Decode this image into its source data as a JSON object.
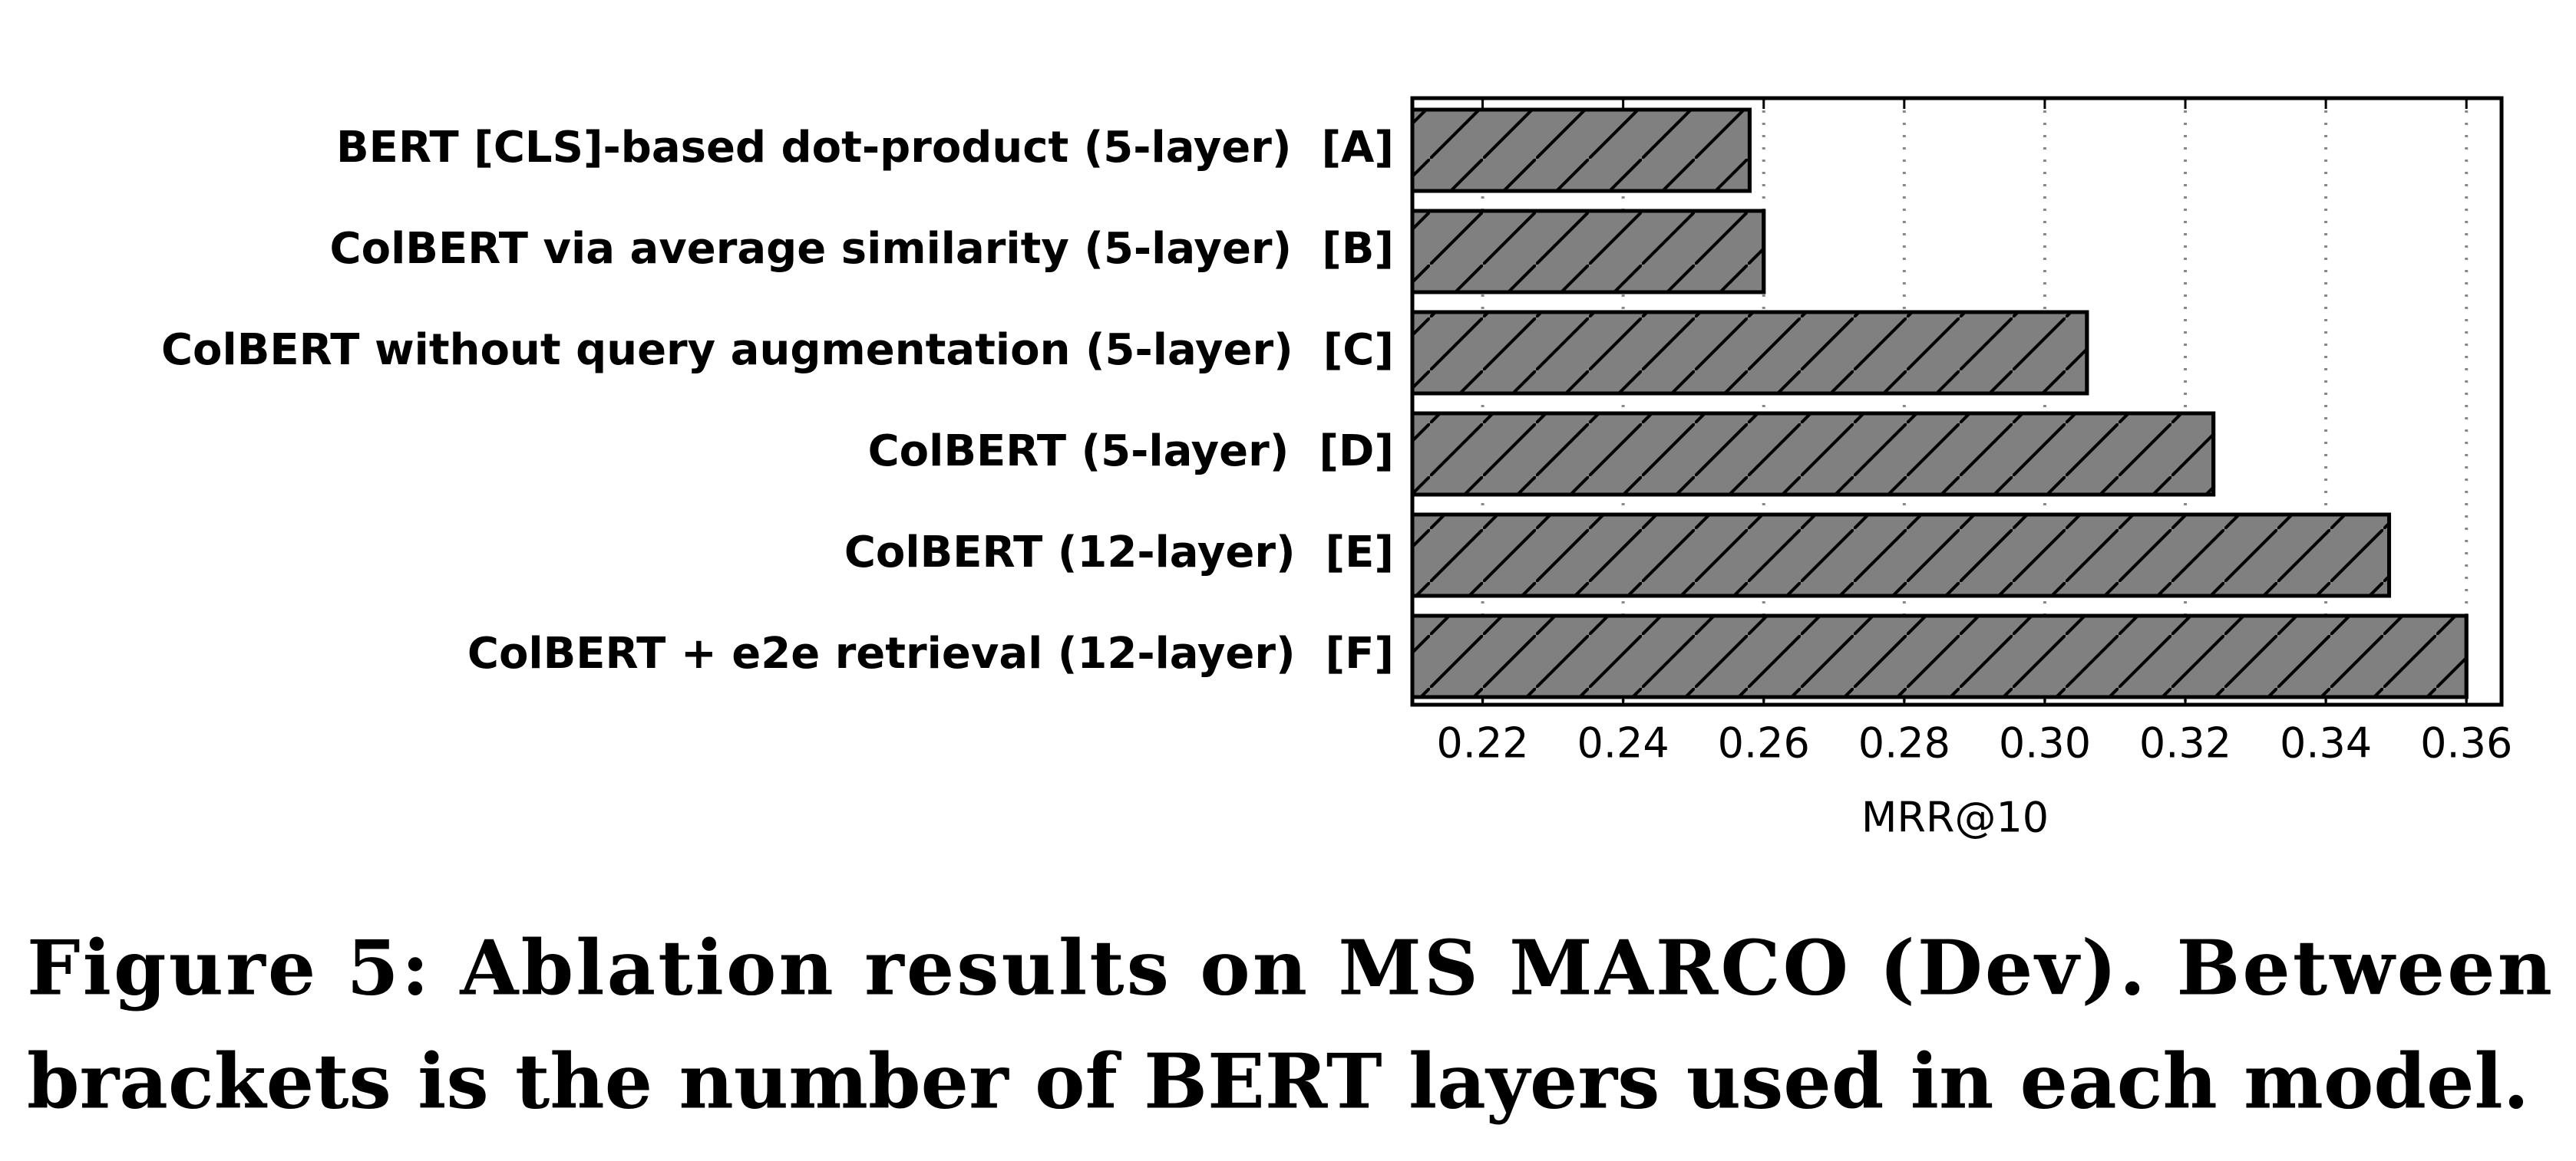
{
  "chart_data": {
    "type": "barh",
    "categories": [
      "BERT [CLS]-based dot-product (5-layer)  [A]",
      "ColBERT via average similarity (5-layer)  [B]",
      "ColBERT without query augmentation (5-layer)  [C]",
      "ColBERT (5-layer)  [D]",
      "ColBERT (12-layer)  [E]",
      "ColBERT + e2e retrieval (12-layer)  [F]"
    ],
    "values": [
      0.258,
      0.26,
      0.306,
      0.324,
      0.349,
      0.36
    ],
    "color": "#808080",
    "hatch": "/",
    "xlabel": "MRR@10",
    "xlim": [
      0.21,
      0.365
    ],
    "xticks": [
      0.22,
      0.24,
      0.26,
      0.28,
      {
        "value": 0.3,
        "label": "0.30"
      },
      0.32,
      0.34,
      0.36
    ],
    "grid": true,
    "caption": [
      "Figure 5: Ablation results on MS MARCO (Dev). Between",
      "brackets is the number of BERT layers used in each model."
    ]
  }
}
